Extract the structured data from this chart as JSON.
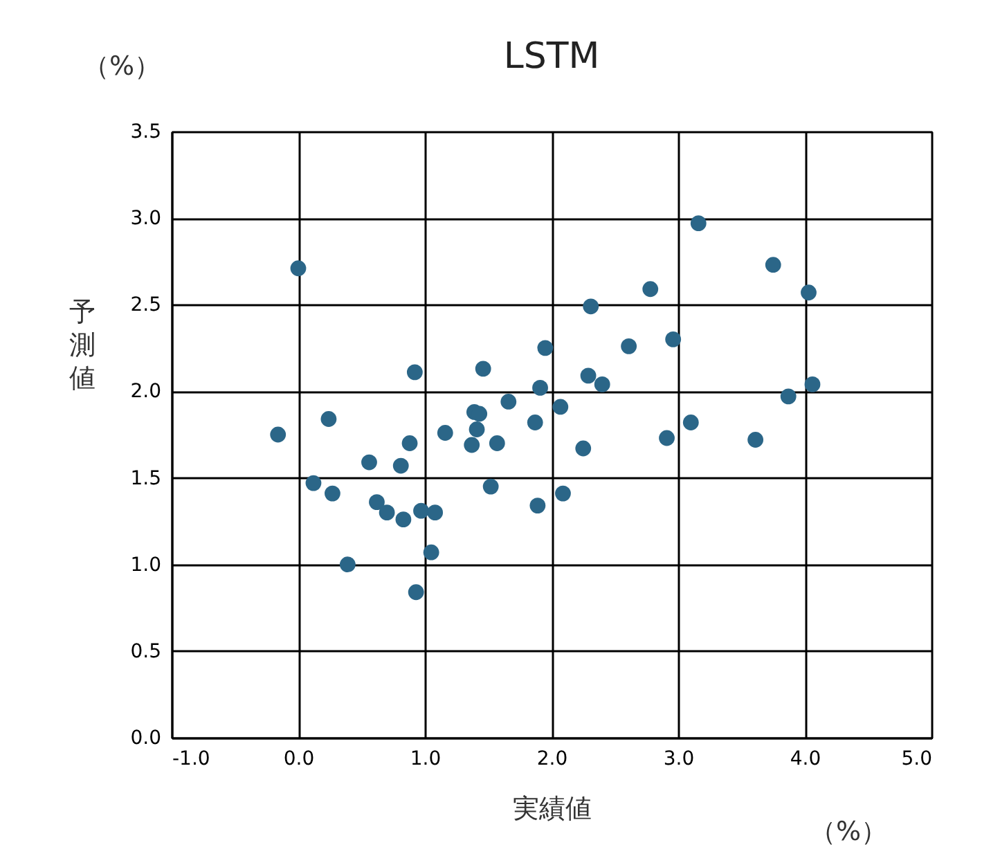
{
  "chart_data": {
    "type": "scatter",
    "title": "LSTM",
    "xlabel": "実績値",
    "ylabel": "予測値",
    "annotations": [
      "（%）",
      "（%）"
    ],
    "xlim": [
      -1.0,
      5.0
    ],
    "xticks": [
      {
        "value": -1,
        "label": "-1.0"
      },
      {
        "value": 0,
        "label": "0.0"
      },
      {
        "value": 1,
        "label": "1.0"
      },
      {
        "value": 2,
        "label": "2.0"
      },
      {
        "value": 3,
        "label": "3.0"
      },
      {
        "value": 4,
        "label": "4.0"
      },
      {
        "value": 5,
        "label": "5.0"
      }
    ],
    "ylim": [
      0,
      3.5
    ],
    "yticks": [
      {
        "value": 0,
        "label": "0.0"
      },
      {
        "value": 0.5,
        "label": "0.5"
      },
      {
        "value": 1,
        "label": "1.0"
      },
      {
        "value": 1.5,
        "label": "1.5"
      },
      {
        "value": 2,
        "label": "2.0"
      },
      {
        "value": 2.5,
        "label": "2.5"
      },
      {
        "value": 3,
        "label": "3.0"
      },
      {
        "value": 3.5,
        "label": "3.5"
      }
    ],
    "grid": true,
    "marker": "circle",
    "series": [
      {
        "color": "#2b6688",
        "x": [
          0.0,
          -0.16,
          0.12,
          0.24,
          0.27,
          0.39,
          0.56,
          0.62,
          0.7,
          0.81,
          0.83,
          0.88,
          0.92,
          0.93,
          0.97,
          1.05,
          1.08,
          1.16,
          1.37,
          1.39,
          1.41,
          1.43,
          1.46,
          1.52,
          1.57,
          1.66,
          1.87,
          1.89,
          1.91,
          1.95,
          2.07,
          2.09,
          2.25,
          2.29,
          2.31,
          2.4,
          2.61,
          2.78,
          2.91,
          2.96,
          3.1,
          3.16,
          3.61,
          3.75,
          3.87,
          4.03,
          4.06
        ],
        "values": [
          2.71,
          1.75,
          1.47,
          1.84,
          1.41,
          1.0,
          1.59,
          1.36,
          1.3,
          1.57,
          1.26,
          1.7,
          2.11,
          0.84,
          1.31,
          1.07,
          1.3,
          1.76,
          1.69,
          1.88,
          1.78,
          1.87,
          2.13,
          1.45,
          1.7,
          1.94,
          1.82,
          1.34,
          2.02,
          2.25,
          1.91,
          1.41,
          1.67,
          2.09,
          2.49,
          2.04,
          2.26,
          2.59,
          1.73,
          2.3,
          1.82,
          2.97,
          1.72,
          2.73,
          1.97,
          2.57,
          2.04
        ]
      }
    ]
  }
}
